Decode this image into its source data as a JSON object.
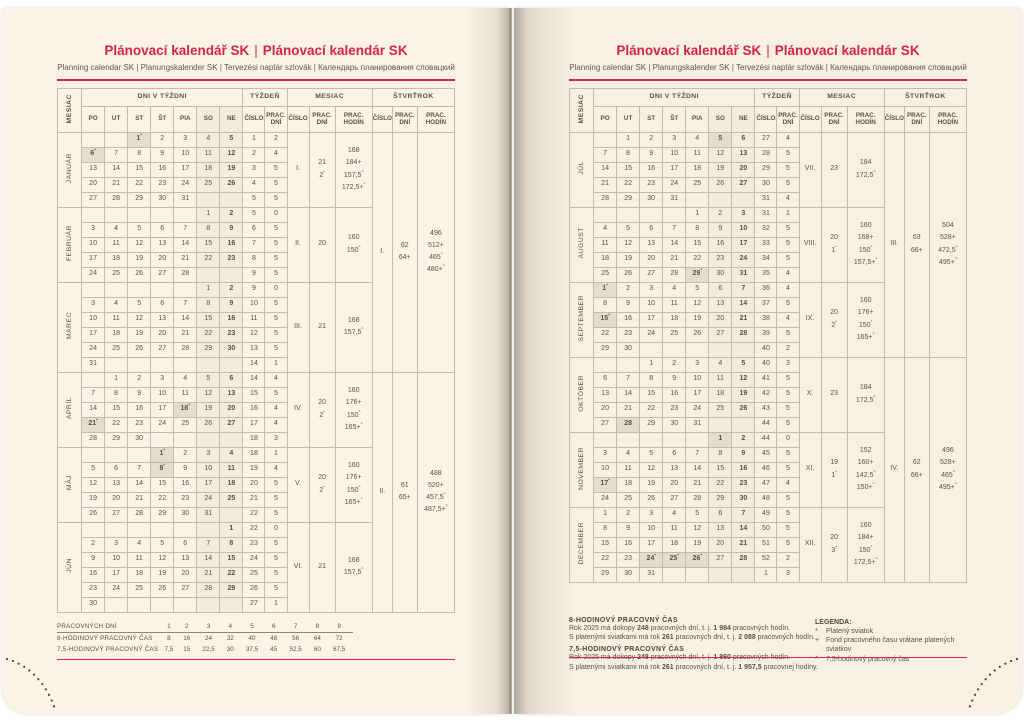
{
  "colors": {
    "accent": "#d62449",
    "paper": "#fbf3e6",
    "grid_line": "#c6bba8",
    "text": "#57514a"
  },
  "page": {
    "title_part1": "Plánovací kalendář SK",
    "title_part2": "Plánovací kalendár SK",
    "title_separator": "|",
    "subtitle": "Planning calendar SK | Planungskalender SK | Tervezési naptár szlovák | Календарь планирования словацкий"
  },
  "table_header": {
    "month_col": "MESIAC",
    "days_group": "DNI V TÝŽDNI",
    "day_cols": [
      "PO",
      "UT",
      "ST",
      "ŠT",
      "PIA",
      "SO",
      "NE"
    ],
    "week_group": "TÝŽDEŇ",
    "week_cols": [
      "ČÍSLO",
      "PRAC. DNÍ"
    ],
    "month_group": "MESIAC",
    "month_cols": [
      "ČÍSLO",
      "PRAC. DNÍ",
      "PRAC. HODÍN"
    ],
    "quarter_group": "ŠTVRŤROK",
    "quarter_cols": [
      "ČÍSLO",
      "PRAC. DNÍ",
      "PRAC. HODÍN"
    ]
  },
  "left_months": [
    {
      "name": "JANUÁR",
      "no": "I.",
      "month_days": [
        "21",
        "2*"
      ],
      "month_hours": [
        "168",
        "184+",
        "157,5^",
        "172,5+^"
      ],
      "weeks": [
        {
          "d": [
            "",
            "",
            "1*",
            "2",
            "3",
            "4",
            "5"
          ],
          "w": "1",
          "n": "2"
        },
        {
          "d": [
            "6*",
            "7",
            "8",
            "9",
            "10",
            "11",
            "12"
          ],
          "w": "2",
          "n": "4"
        },
        {
          "d": [
            "13",
            "14",
            "15",
            "16",
            "17",
            "18",
            "19"
          ],
          "w": "3",
          "n": "5"
        },
        {
          "d": [
            "20",
            "21",
            "22",
            "23",
            "24",
            "25",
            "26"
          ],
          "w": "4",
          "n": "5"
        },
        {
          "d": [
            "27",
            "28",
            "29",
            "30",
            "31",
            "",
            ""
          ],
          "w": "5",
          "n": "5"
        }
      ]
    },
    {
      "name": "FEBRUÁR",
      "no": "II.",
      "month_days": [
        "20"
      ],
      "month_hours": [
        "160",
        "150^"
      ],
      "weeks": [
        {
          "d": [
            "",
            "",
            "",
            "",
            "",
            "1",
            "2"
          ],
          "w": "5",
          "n": "0"
        },
        {
          "d": [
            "3",
            "4",
            "5",
            "6",
            "7",
            "8",
            "9"
          ],
          "w": "6",
          "n": "5"
        },
        {
          "d": [
            "10",
            "11",
            "12",
            "13",
            "14",
            "15",
            "16"
          ],
          "w": "7",
          "n": "5"
        },
        {
          "d": [
            "17",
            "18",
            "19",
            "20",
            "21",
            "22",
            "23"
          ],
          "w": "8",
          "n": "5"
        },
        {
          "d": [
            "24",
            "25",
            "26",
            "27",
            "28",
            "",
            ""
          ],
          "w": "9",
          "n": "5"
        }
      ]
    },
    {
      "name": "MAREC",
      "no": "III.",
      "month_days": [
        "21"
      ],
      "month_hours": [
        "168",
        "157,5^"
      ],
      "weeks": [
        {
          "d": [
            "",
            "",
            "",
            "",
            "",
            "1",
            "2"
          ],
          "w": "9",
          "n": "0"
        },
        {
          "d": [
            "3",
            "4",
            "5",
            "6",
            "7",
            "8",
            "9"
          ],
          "w": "10",
          "n": "5"
        },
        {
          "d": [
            "10",
            "11",
            "12",
            "13",
            "14",
            "15",
            "16"
          ],
          "w": "11",
          "n": "5"
        },
        {
          "d": [
            "17",
            "18",
            "19",
            "20",
            "21",
            "22",
            "23"
          ],
          "w": "12",
          "n": "5"
        },
        {
          "d": [
            "24",
            "25",
            "26",
            "27",
            "28",
            "29",
            "30"
          ],
          "w": "13",
          "n": "5"
        },
        {
          "d": [
            "31",
            "",
            "",
            "",
            "",
            "",
            ""
          ],
          "w": "14",
          "n": "1"
        }
      ]
    },
    {
      "name": "APRÍL",
      "no": "IV.",
      "month_days": [
        "20",
        "2*"
      ],
      "month_hours": [
        "160",
        "176+",
        "150^",
        "165+^"
      ],
      "weeks": [
        {
          "d": [
            "",
            "1",
            "2",
            "3",
            "4",
            "5",
            "6"
          ],
          "w": "14",
          "n": "4"
        },
        {
          "d": [
            "7",
            "8",
            "9",
            "10",
            "11",
            "12",
            "13"
          ],
          "w": "15",
          "n": "5"
        },
        {
          "d": [
            "14",
            "15",
            "16",
            "17",
            "18*",
            "19",
            "20"
          ],
          "w": "16",
          "n": "4"
        },
        {
          "d": [
            "21*",
            "22",
            "23",
            "24",
            "25",
            "26",
            "27"
          ],
          "w": "17",
          "n": "4"
        },
        {
          "d": [
            "28",
            "29",
            "30",
            "",
            "",
            "",
            ""
          ],
          "w": "18",
          "n": "3"
        }
      ]
    },
    {
      "name": "MÁJ",
      "no": "V.",
      "month_days": [
        "20",
        "2*"
      ],
      "month_hours": [
        "160",
        "176+",
        "150^",
        "165+^"
      ],
      "weeks": [
        {
          "d": [
            "",
            "",
            "",
            "1*",
            "2",
            "3",
            "4"
          ],
          "w": "18",
          "n": "1"
        },
        {
          "d": [
            "5",
            "6",
            "7",
            "8*",
            "9",
            "10",
            "11"
          ],
          "w": "19",
          "n": "4"
        },
        {
          "d": [
            "12",
            "13",
            "14",
            "15",
            "16",
            "17",
            "18"
          ],
          "w": "20",
          "n": "5"
        },
        {
          "d": [
            "19",
            "20",
            "21",
            "22",
            "23",
            "24",
            "25"
          ],
          "w": "21",
          "n": "5"
        },
        {
          "d": [
            "26",
            "27",
            "28",
            "29",
            "30",
            "31",
            ""
          ],
          "w": "22",
          "n": "5"
        }
      ]
    },
    {
      "name": "JÚN",
      "no": "VI.",
      "month_days": [
        "21"
      ],
      "month_hours": [
        "168",
        "157,5^"
      ],
      "weeks": [
        {
          "d": [
            "",
            "",
            "",
            "",
            "",
            "",
            "1"
          ],
          "w": "22",
          "n": "0"
        },
        {
          "d": [
            "2",
            "3",
            "4",
            "5",
            "6",
            "7",
            "8"
          ],
          "w": "23",
          "n": "5"
        },
        {
          "d": [
            "9",
            "10",
            "11",
            "12",
            "13",
            "14",
            "15"
          ],
          "w": "24",
          "n": "5"
        },
        {
          "d": [
            "16",
            "17",
            "18",
            "19",
            "20",
            "21",
            "22"
          ],
          "w": "25",
          "n": "5"
        },
        {
          "d": [
            "23",
            "24",
            "25",
            "26",
            "27",
            "28",
            "29"
          ],
          "w": "26",
          "n": "5"
        },
        {
          "d": [
            "30",
            "",
            "",
            "",
            "",
            "",
            ""
          ],
          "w": "27",
          "n": "1"
        }
      ]
    }
  ],
  "right_months": [
    {
      "name": "JÚL",
      "no": "VII.",
      "month_days": [
        "23"
      ],
      "month_hours": [
        "184",
        "172,5^"
      ],
      "weeks": [
        {
          "d": [
            "",
            "1",
            "2",
            "3",
            "4",
            "5!",
            "6"
          ],
          "w": "27",
          "n": "4"
        },
        {
          "d": [
            "7",
            "8",
            "9",
            "10",
            "11",
            "12",
            "13"
          ],
          "w": "28",
          "n": "5"
        },
        {
          "d": [
            "14",
            "15",
            "16",
            "17",
            "18",
            "19",
            "20"
          ],
          "w": "29",
          "n": "5"
        },
        {
          "d": [
            "21",
            "22",
            "23",
            "24",
            "25",
            "26",
            "27"
          ],
          "w": "30",
          "n": "5"
        },
        {
          "d": [
            "28",
            "29",
            "30",
            "31",
            "",
            "",
            ""
          ],
          "w": "31",
          "n": "4"
        }
      ]
    },
    {
      "name": "AUGUST",
      "no": "VIII.",
      "month_days": [
        "20",
        "1*"
      ],
      "month_hours": [
        "160",
        "168+",
        "150^",
        "157,5+^"
      ],
      "weeks": [
        {
          "d": [
            "",
            "",
            "",
            "",
            "1",
            "2",
            "3"
          ],
          "w": "31",
          "n": "1"
        },
        {
          "d": [
            "4",
            "5",
            "6",
            "7",
            "8",
            "9",
            "10"
          ],
          "w": "32",
          "n": "5"
        },
        {
          "d": [
            "11",
            "12",
            "13",
            "14",
            "15",
            "16",
            "17"
          ],
          "w": "33",
          "n": "5"
        },
        {
          "d": [
            "18",
            "19",
            "20",
            "21",
            "22",
            "23",
            "24"
          ],
          "w": "34",
          "n": "5"
        },
        {
          "d": [
            "25",
            "26",
            "27",
            "28",
            "29*",
            "30",
            "31"
          ],
          "w": "35",
          "n": "4"
        }
      ]
    },
    {
      "name": "SEPTEMBER",
      "no": "IX.",
      "month_days": [
        "20",
        "2*"
      ],
      "month_hours": [
        "160",
        "176+",
        "150^",
        "165+^"
      ],
      "weeks": [
        {
          "d": [
            "1*",
            "2",
            "3",
            "4",
            "5",
            "6",
            "7"
          ],
          "w": "36",
          "n": "4"
        },
        {
          "d": [
            "8",
            "9",
            "10",
            "11",
            "12",
            "13",
            "14"
          ],
          "w": "37",
          "n": "5"
        },
        {
          "d": [
            "15*",
            "16",
            "17",
            "18",
            "19",
            "20",
            "21"
          ],
          "w": "38",
          "n": "4"
        },
        {
          "d": [
            "22",
            "23",
            "24",
            "25",
            "26",
            "27",
            "28"
          ],
          "w": "39",
          "n": "5"
        },
        {
          "d": [
            "29",
            "30",
            "",
            "",
            "",
            "",
            ""
          ],
          "w": "40",
          "n": "2"
        }
      ]
    },
    {
      "name": "OKTÓBER",
      "no": "X.",
      "month_days": [
        "23"
      ],
      "month_hours": [
        "184",
        "172,5^"
      ],
      "weeks": [
        {
          "d": [
            "",
            "",
            "1",
            "2",
            "3",
            "4",
            "5"
          ],
          "w": "40",
          "n": "3"
        },
        {
          "d": [
            "6",
            "7",
            "8",
            "9",
            "10",
            "11",
            "12"
          ],
          "w": "41",
          "n": "5"
        },
        {
          "d": [
            "13",
            "14",
            "15",
            "16",
            "17",
            "18",
            "19"
          ],
          "w": "42",
          "n": "5"
        },
        {
          "d": [
            "20",
            "21",
            "22",
            "23",
            "24",
            "25",
            "26"
          ],
          "w": "43",
          "n": "5"
        },
        {
          "d": [
            "27",
            "28!",
            "29",
            "30",
            "31",
            "",
            ""
          ],
          "w": "44",
          "n": "5"
        }
      ]
    },
    {
      "name": "NOVEMBER",
      "no": "XI.",
      "month_days": [
        "19",
        "1*"
      ],
      "month_hours": [
        "152",
        "160+",
        "142,5^",
        "150+^"
      ],
      "weeks": [
        {
          "d": [
            "",
            "",
            "",
            "",
            "",
            "1!",
            "2"
          ],
          "w": "44",
          "n": "0"
        },
        {
          "d": [
            "3",
            "4",
            "5",
            "6",
            "7",
            "8",
            "9"
          ],
          "w": "45",
          "n": "5"
        },
        {
          "d": [
            "10",
            "11",
            "12",
            "13",
            "14",
            "15",
            "16"
          ],
          "w": "46",
          "n": "5"
        },
        {
          "d": [
            "17*",
            "18",
            "19",
            "20",
            "21",
            "22",
            "23"
          ],
          "w": "47",
          "n": "4"
        },
        {
          "d": [
            "24",
            "25",
            "26",
            "27",
            "28",
            "29",
            "30"
          ],
          "w": "48",
          "n": "5"
        }
      ]
    },
    {
      "name": "DECEMBER",
      "no": "XII.",
      "month_days": [
        "20",
        "3*"
      ],
      "month_hours": [
        "160",
        "184+",
        "150^",
        "172,5+^"
      ],
      "weeks": [
        {
          "d": [
            "1",
            "2",
            "3",
            "4",
            "5",
            "6",
            "7"
          ],
          "w": "49",
          "n": "5"
        },
        {
          "d": [
            "8",
            "9",
            "10",
            "11",
            "12",
            "13",
            "14"
          ],
          "w": "50",
          "n": "5"
        },
        {
          "d": [
            "15",
            "16",
            "17",
            "18",
            "19",
            "20",
            "21"
          ],
          "w": "51",
          "n": "5"
        },
        {
          "d": [
            "22",
            "23",
            "24*",
            "25*",
            "26*",
            "27",
            "28"
          ],
          "w": "52",
          "n": "2"
        },
        {
          "d": [
            "29",
            "30",
            "31",
            "",
            "",
            "",
            ""
          ],
          "w": "1",
          "n": "3"
        }
      ]
    }
  ],
  "left_quarters": [
    {
      "no": "I.",
      "days": [
        "62",
        "64+"
      ],
      "hours": [
        "496",
        "512+",
        "465^",
        "480+^"
      ]
    },
    {
      "no": "II.",
      "days": [
        "61",
        "65+"
      ],
      "hours": [
        "488",
        "520+",
        "457,5^",
        "487,5+^"
      ]
    }
  ],
  "right_quarters": [
    {
      "no": "III.",
      "days": [
        "63",
        "66+"
      ],
      "hours": [
        "504",
        "528+",
        "472,5^",
        "495+^"
      ]
    },
    {
      "no": "IV.",
      "days": [
        "62",
        "66+"
      ],
      "hours": [
        "496",
        "528+",
        "465^",
        "495+^"
      ]
    }
  ],
  "left_footer": {
    "rows": [
      {
        "label": "PRACOVNÝCH DNÍ",
        "values": [
          "1",
          "2",
          "3",
          "4",
          "5",
          "6",
          "7",
          "8",
          "9"
        ]
      },
      {
        "label": "8-HODINOVÝ PRACOVNÝ ČAS",
        "values": [
          "8",
          "16",
          "24",
          "32",
          "40",
          "48",
          "56",
          "64",
          "72"
        ]
      },
      {
        "label": "7,5-HODINOVÝ PRACOVNÝ ČAS",
        "values": [
          "7,5",
          "15",
          "22,5",
          "30",
          "37,5",
          "45",
          "52,5",
          "60",
          "67,5"
        ]
      }
    ]
  },
  "right_footer": {
    "sections": [
      {
        "heading": "8-HODINOVÝ PRACOVNÝ ČAS",
        "lines": [
          "Rok 2025 má dokopy 248 pracovných dní, t. j. 1 984 pracovných hodín.",
          "S platenými sviatkami má rok 261 pracovných dní, t. j. 2 088 pracovných hodín."
        ]
      },
      {
        "heading": "7,5-HODINOVÝ PRACOVNÝ ČAS",
        "lines": [
          "Rok 2025 má dokopy 248 pracovných dní, t. j. 1 860 pracovných hodín.",
          "S platenými sviatkami má rok 261 pracovných dní, t. j. 1 957,5 pracovnej hodiny."
        ]
      }
    ],
    "legend": {
      "title": "LEGENDA:",
      "items": [
        {
          "sym": "*",
          "text": "Platený sviatok"
        },
        {
          "sym": "+",
          "text": "Fond pracovného času vrátane platených sviatkov"
        },
        {
          "sym": "^",
          "text": "7,5-hodinový pracovný čas"
        }
      ]
    }
  }
}
